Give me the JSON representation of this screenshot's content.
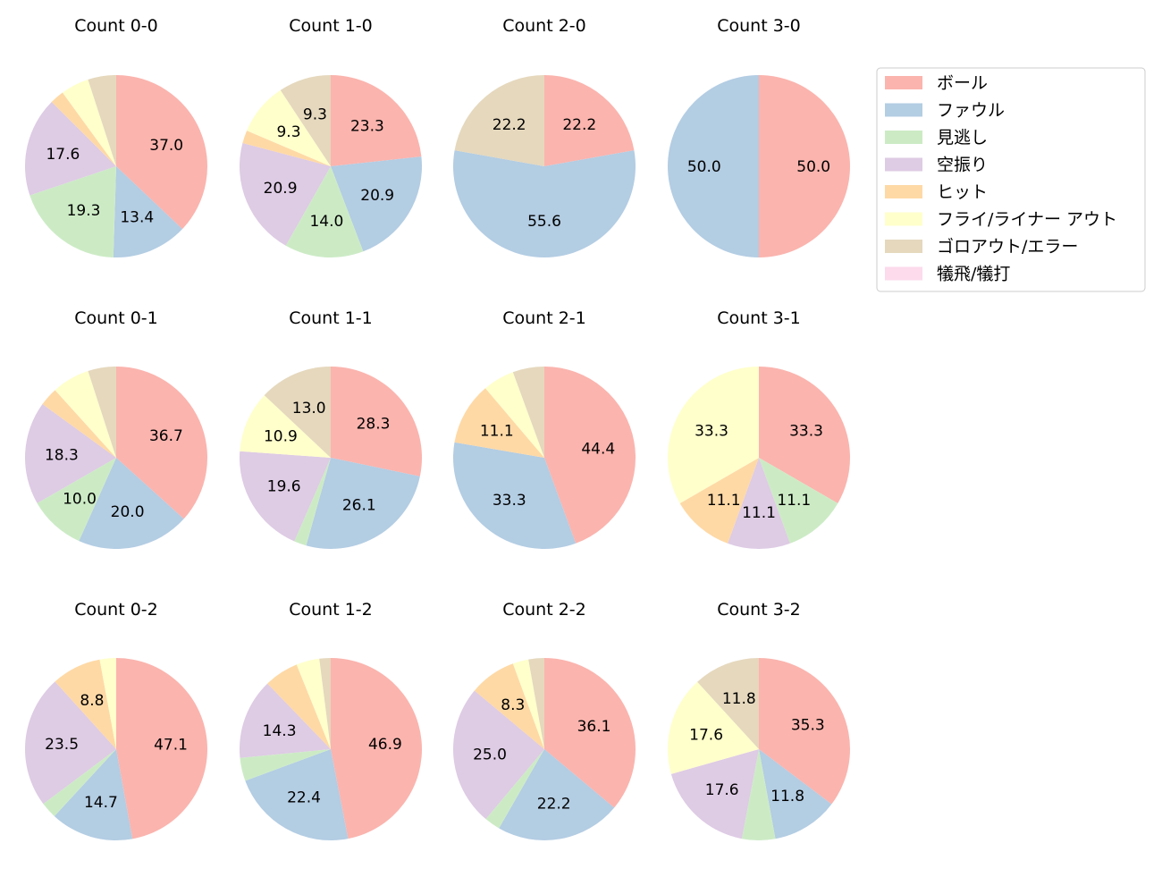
{
  "legend": {
    "entries": [
      "ボール",
      "ファウル",
      "見逃し",
      "空振り",
      "ヒット",
      "フライ/ライナー アウト",
      "ゴロアウト/エラー",
      "犠飛/犠打"
    ],
    "colors": [
      "#fbb4ae",
      "#b3cde3",
      "#ccebc5",
      "#decbe4",
      "#fed9a6",
      "#ffffcc",
      "#e5d8bd",
      "#fddaec"
    ],
    "placement": "top-right"
  },
  "chart_data": [
    {
      "type": "pie",
      "title": "Count 0-0",
      "values": [
        37.0,
        13.4,
        19.3,
        17.6,
        2.5,
        5.0,
        5.0,
        0
      ],
      "labels": [
        "37.0",
        "13.4",
        "19.3",
        "17.6",
        "",
        "",
        "",
        ""
      ]
    },
    {
      "type": "pie",
      "title": "Count 1-0",
      "values": [
        23.3,
        20.9,
        14.0,
        20.9,
        2.3,
        9.3,
        9.3,
        0
      ],
      "labels": [
        "23.3",
        "20.9",
        "14.0",
        "20.9",
        "",
        "9.3",
        "9.3",
        ""
      ]
    },
    {
      "type": "pie",
      "title": "Count 2-0",
      "values": [
        22.2,
        55.6,
        0,
        0,
        0,
        0,
        22.2,
        0
      ],
      "labels": [
        "22.2",
        "55.6",
        "",
        "",
        "",
        "",
        "22.2",
        ""
      ]
    },
    {
      "type": "pie",
      "title": "Count 3-0",
      "values": [
        50.0,
        50.0,
        0,
        0,
        0,
        0,
        0,
        0
      ],
      "labels": [
        "50.0",
        "50.0",
        "",
        "",
        "",
        "",
        "",
        ""
      ]
    },
    {
      "type": "pie",
      "title": "Count 0-1",
      "values": [
        36.7,
        20.0,
        10.0,
        18.3,
        3.3,
        6.7,
        5.0,
        0
      ],
      "labels": [
        "36.7",
        "20.0",
        "10.0",
        "18.3",
        "",
        "",
        "",
        ""
      ]
    },
    {
      "type": "pie",
      "title": "Count 1-1",
      "values": [
        28.3,
        26.1,
        2.2,
        19.6,
        0,
        10.9,
        13.0,
        0
      ],
      "labels": [
        "28.3",
        "26.1",
        "",
        "19.6",
        "",
        "10.9",
        "13.0",
        ""
      ]
    },
    {
      "type": "pie",
      "title": "Count 2-1",
      "values": [
        44.4,
        33.3,
        0,
        0,
        11.1,
        5.6,
        5.6,
        0
      ],
      "labels": [
        "44.4",
        "33.3",
        "",
        "",
        "11.1",
        "",
        "",
        ""
      ]
    },
    {
      "type": "pie",
      "title": "Count 3-1",
      "values": [
        33.3,
        0,
        11.1,
        11.1,
        11.1,
        33.3,
        0,
        0
      ],
      "labels": [
        "33.3",
        "",
        "11.1",
        "11.1",
        "11.1",
        "33.3",
        "",
        ""
      ]
    },
    {
      "type": "pie",
      "title": "Count 0-2",
      "values": [
        47.1,
        14.7,
        2.9,
        23.5,
        8.8,
        2.9,
        0,
        0
      ],
      "labels": [
        "47.1",
        "14.7",
        "",
        "23.5",
        "8.8",
        "",
        "",
        ""
      ]
    },
    {
      "type": "pie",
      "title": "Count 1-2",
      "values": [
        46.9,
        22.4,
        4.1,
        14.3,
        6.1,
        4.1,
        2.0,
        0
      ],
      "labels": [
        "46.9",
        "22.4",
        "",
        "14.3",
        "",
        "",
        "",
        ""
      ]
    },
    {
      "type": "pie",
      "title": "Count 2-2",
      "values": [
        36.1,
        22.2,
        2.8,
        25.0,
        8.3,
        2.8,
        2.8,
        0
      ],
      "labels": [
        "36.1",
        "22.2",
        "",
        "25.0",
        "8.3",
        "",
        "",
        ""
      ]
    },
    {
      "type": "pie",
      "title": "Count 3-2",
      "values": [
        35.3,
        11.8,
        5.9,
        17.6,
        0,
        17.6,
        11.8,
        0
      ],
      "labels": [
        "35.3",
        "11.8",
        "",
        "17.6",
        "",
        "17.6",
        "11.8",
        ""
      ]
    }
  ]
}
